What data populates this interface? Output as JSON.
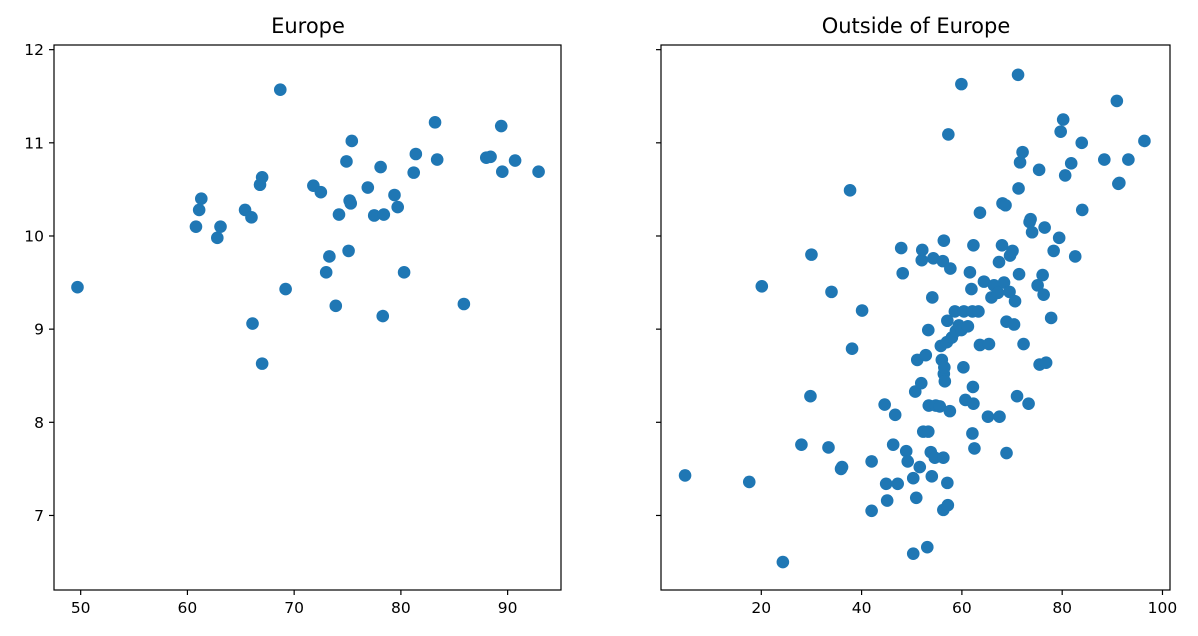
{
  "colors": {
    "marker": "#1f77b4"
  },
  "chart_data": [
    {
      "type": "scatter",
      "title": "Europe",
      "xlabel": "",
      "ylabel": "",
      "xlim": [
        47.5,
        95.0
      ],
      "ylim": [
        6.2,
        12.05
      ],
      "xticks": [
        50,
        60,
        70,
        80,
        90
      ],
      "yticks": [
        7,
        8,
        9,
        10,
        11,
        12
      ],
      "show_ytick_labels": true,
      "points": [
        [
          49.7,
          9.45
        ],
        [
          60.8,
          10.1
        ],
        [
          61.1,
          10.28
        ],
        [
          61.3,
          10.4
        ],
        [
          62.8,
          9.98
        ],
        [
          63.1,
          10.1
        ],
        [
          65.4,
          10.28
        ],
        [
          66.0,
          10.2
        ],
        [
          66.1,
          9.06
        ],
        [
          66.8,
          10.55
        ],
        [
          67.0,
          10.63
        ],
        [
          67.0,
          8.63
        ],
        [
          68.7,
          11.57
        ],
        [
          69.2,
          9.43
        ],
        [
          71.8,
          10.54
        ],
        [
          72.5,
          10.47
        ],
        [
          73.0,
          9.61
        ],
        [
          73.3,
          9.78
        ],
        [
          73.9,
          9.25
        ],
        [
          74.2,
          10.23
        ],
        [
          74.9,
          10.8
        ],
        [
          75.1,
          9.84
        ],
        [
          75.2,
          10.38
        ],
        [
          75.3,
          10.35
        ],
        [
          75.4,
          11.02
        ],
        [
          76.9,
          10.52
        ],
        [
          77.5,
          10.22
        ],
        [
          78.1,
          10.74
        ],
        [
          78.3,
          9.14
        ],
        [
          78.4,
          10.23
        ],
        [
          79.4,
          10.44
        ],
        [
          79.7,
          10.31
        ],
        [
          80.3,
          9.61
        ],
        [
          81.2,
          10.68
        ],
        [
          81.4,
          10.88
        ],
        [
          83.2,
          11.22
        ],
        [
          83.4,
          10.82
        ],
        [
          85.9,
          9.27
        ],
        [
          88.0,
          10.84
        ],
        [
          88.4,
          10.85
        ],
        [
          89.4,
          11.18
        ],
        [
          89.5,
          10.69
        ],
        [
          90.7,
          10.81
        ],
        [
          92.9,
          10.69
        ]
      ]
    },
    {
      "type": "scatter",
      "title": "Outside of Europe",
      "xlabel": "",
      "ylabel": "",
      "xlim": [
        0.0,
        101.5
      ],
      "ylim": [
        6.2,
        12.05
      ],
      "xticks": [
        20,
        40,
        60,
        80,
        100
      ],
      "yticks": [
        7,
        8,
        9,
        10,
        11,
        12
      ],
      "show_ytick_labels": false,
      "points": [
        [
          4.8,
          7.43
        ],
        [
          17.6,
          7.36
        ],
        [
          20.1,
          9.46
        ],
        [
          24.3,
          6.5
        ],
        [
          28.0,
          7.76
        ],
        [
          29.8,
          8.28
        ],
        [
          30.0,
          9.8
        ],
        [
          33.4,
          7.73
        ],
        [
          34.0,
          9.4
        ],
        [
          35.9,
          7.5
        ],
        [
          36.1,
          7.52
        ],
        [
          37.7,
          10.49
        ],
        [
          38.1,
          8.79
        ],
        [
          40.1,
          9.2
        ],
        [
          42.0,
          7.58
        ],
        [
          42.0,
          7.05
        ],
        [
          44.6,
          8.19
        ],
        [
          44.9,
          7.34
        ],
        [
          45.1,
          7.16
        ],
        [
          46.3,
          7.76
        ],
        [
          46.7,
          8.08
        ],
        [
          47.2,
          7.34
        ],
        [
          47.9,
          9.87
        ],
        [
          48.2,
          9.6
        ],
        [
          48.9,
          7.69
        ],
        [
          49.2,
          7.58
        ],
        [
          50.3,
          6.59
        ],
        [
          50.3,
          7.4
        ],
        [
          50.7,
          8.33
        ],
        [
          50.9,
          7.19
        ],
        [
          51.1,
          8.67
        ],
        [
          51.6,
          7.52
        ],
        [
          51.9,
          8.42
        ],
        [
          52.0,
          9.74
        ],
        [
          52.1,
          9.85
        ],
        [
          52.3,
          7.9
        ],
        [
          52.8,
          8.72
        ],
        [
          53.1,
          6.66
        ],
        [
          53.3,
          8.99
        ],
        [
          53.3,
          7.9
        ],
        [
          53.4,
          8.18
        ],
        [
          53.8,
          7.68
        ],
        [
          54.0,
          7.42
        ],
        [
          54.1,
          9.34
        ],
        [
          54.3,
          9.76
        ],
        [
          54.6,
          7.62
        ],
        [
          54.8,
          8.18
        ],
        [
          55.6,
          8.17
        ],
        [
          55.8,
          8.82
        ],
        [
          56.0,
          8.67
        ],
        [
          56.2,
          9.73
        ],
        [
          56.3,
          7.62
        ],
        [
          56.3,
          7.06
        ],
        [
          56.4,
          9.95
        ],
        [
          56.4,
          8.52
        ],
        [
          56.5,
          8.59
        ],
        [
          56.6,
          8.44
        ],
        [
          57.0,
          8.86
        ],
        [
          57.1,
          9.09
        ],
        [
          57.1,
          7.35
        ],
        [
          57.2,
          7.11
        ],
        [
          57.3,
          11.09
        ],
        [
          57.6,
          8.12
        ],
        [
          57.7,
          9.65
        ],
        [
          58.0,
          8.91
        ],
        [
          58.6,
          9.19
        ],
        [
          58.8,
          8.98
        ],
        [
          59.4,
          9.04
        ],
        [
          59.9,
          11.63
        ],
        [
          59.9,
          8.99
        ],
        [
          60.3,
          8.59
        ],
        [
          60.4,
          9.19
        ],
        [
          60.7,
          8.24
        ],
        [
          61.2,
          9.03
        ],
        [
          61.6,
          9.61
        ],
        [
          61.9,
          9.43
        ],
        [
          62.1,
          9.19
        ],
        [
          62.1,
          7.88
        ],
        [
          62.2,
          8.38
        ],
        [
          62.3,
          8.2
        ],
        [
          62.3,
          9.9
        ],
        [
          62.5,
          7.72
        ],
        [
          63.3,
          9.19
        ],
        [
          63.6,
          10.25
        ],
        [
          63.6,
          8.83
        ],
        [
          64.4,
          9.51
        ],
        [
          65.2,
          8.06
        ],
        [
          65.4,
          8.84
        ],
        [
          65.9,
          9.34
        ],
        [
          66.4,
          9.47
        ],
        [
          67.2,
          9.39
        ],
        [
          67.4,
          9.72
        ],
        [
          67.5,
          8.06
        ],
        [
          68.0,
          9.9
        ],
        [
          68.1,
          10.35
        ],
        [
          68.4,
          9.5
        ],
        [
          68.7,
          10.33
        ],
        [
          68.9,
          7.67
        ],
        [
          68.9,
          9.08
        ],
        [
          69.5,
          9.4
        ],
        [
          69.6,
          9.79
        ],
        [
          70.1,
          9.84
        ],
        [
          70.4,
          9.05
        ],
        [
          70.6,
          9.3
        ],
        [
          71.0,
          8.28
        ],
        [
          71.2,
          11.73
        ],
        [
          71.3,
          10.51
        ],
        [
          71.4,
          9.59
        ],
        [
          71.6,
          10.79
        ],
        [
          72.1,
          10.9
        ],
        [
          72.3,
          8.84
        ],
        [
          73.3,
          8.2
        ],
        [
          73.5,
          10.15
        ],
        [
          73.7,
          10.18
        ],
        [
          74.0,
          10.04
        ],
        [
          75.1,
          9.47
        ],
        [
          75.4,
          10.71
        ],
        [
          75.5,
          8.62
        ],
        [
          76.1,
          9.58
        ],
        [
          76.3,
          9.37
        ],
        [
          76.5,
          10.09
        ],
        [
          76.8,
          8.64
        ],
        [
          77.8,
          9.12
        ],
        [
          78.3,
          9.84
        ],
        [
          79.4,
          9.98
        ],
        [
          79.7,
          11.12
        ],
        [
          80.2,
          11.25
        ],
        [
          80.6,
          10.65
        ],
        [
          81.8,
          10.78
        ],
        [
          82.6,
          9.78
        ],
        [
          83.9,
          11.0
        ],
        [
          84.0,
          10.28
        ],
        [
          88.4,
          10.82
        ],
        [
          90.9,
          11.45
        ],
        [
          91.2,
          10.56
        ],
        [
          91.4,
          10.57
        ],
        [
          93.2,
          10.82
        ],
        [
          96.4,
          11.02
        ]
      ]
    }
  ]
}
